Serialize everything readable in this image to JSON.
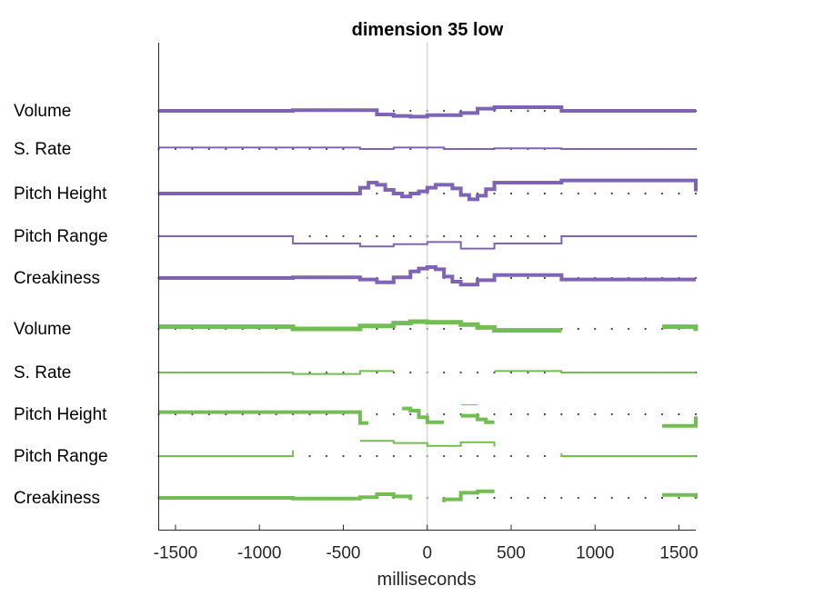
{
  "chart_data": {
    "type": "line",
    "title": "dimension 35 low",
    "xlabel": "milliseconds",
    "xlim": [
      -1600,
      1600
    ],
    "xticks": [
      -1500,
      -1000,
      -500,
      0,
      500,
      1000,
      1500
    ],
    "xtick_labels": [
      "-1500",
      "-1000",
      "-500",
      "0",
      "500",
      "1000",
      "1500"
    ],
    "zero_line": 0,
    "dot_spacing": 100,
    "colors": {
      "purple": "#8064b4",
      "green": "#74bc54",
      "axis": "#262626",
      "zero": "#c8c8c8",
      "dot": "#404040"
    },
    "row_labels": [
      "Volume",
      "S. Rate",
      "Pitch Height",
      "Pitch Range",
      "Creakiness",
      "Volume",
      "S. Rate",
      "Pitch Height",
      "Pitch Range",
      "Creakiness"
    ],
    "series": [
      {
        "name": "Volume",
        "group": "purple",
        "row": 0,
        "weight": 4,
        "segments": [
          [
            [
              -1600,
              0
            ],
            [
              -800,
              0
            ],
            [
              -800,
              0.1
            ],
            [
              -300,
              0.1
            ],
            [
              -300,
              -0.5
            ],
            [
              -200,
              -0.5
            ],
            [
              -200,
              -0.7
            ],
            [
              -100,
              -0.7
            ],
            [
              -100,
              -0.8
            ],
            [
              0,
              -0.8
            ],
            [
              0,
              -0.6
            ],
            [
              200,
              -0.6
            ],
            [
              200,
              -0.3
            ],
            [
              300,
              -0.3
            ],
            [
              300,
              0.3
            ],
            [
              400,
              0.3
            ],
            [
              400,
              0.5
            ],
            [
              800,
              0.5
            ],
            [
              800,
              0
            ],
            [
              1600,
              0
            ]
          ]
        ]
      },
      {
        "name": "S. Rate",
        "group": "purple",
        "row": 1,
        "weight": 2,
        "segments": [
          [
            [
              -1600,
              0.2
            ],
            [
              -800,
              0.2
            ],
            [
              -800,
              0.2
            ],
            [
              -400,
              0.2
            ],
            [
              -400,
              0
            ],
            [
              -200,
              0
            ],
            [
              -200,
              0.2
            ],
            [
              100,
              0.2
            ],
            [
              100,
              0
            ],
            [
              400,
              0
            ],
            [
              400,
              0.1
            ],
            [
              800,
              0.1
            ],
            [
              800,
              0
            ],
            [
              1600,
              0
            ]
          ]
        ]
      },
      {
        "name": "Pitch Height",
        "group": "purple",
        "row": 2,
        "weight": 4,
        "segments": [
          [
            [
              -1600,
              0
            ],
            [
              -400,
              0
            ],
            [
              -400,
              0.8
            ],
            [
              -350,
              0.8
            ],
            [
              -350,
              1.5
            ],
            [
              -300,
              1.5
            ],
            [
              -300,
              1.2
            ],
            [
              -250,
              1.2
            ],
            [
              -250,
              0.5
            ],
            [
              -200,
              0.5
            ],
            [
              -200,
              0
            ],
            [
              -150,
              0
            ],
            [
              -150,
              -0.4
            ],
            [
              -100,
              -0.4
            ],
            [
              -100,
              0
            ],
            [
              -50,
              0
            ],
            [
              -50,
              0.3
            ],
            [
              0,
              0.3
            ],
            [
              0,
              0.8
            ],
            [
              50,
              0.8
            ],
            [
              50,
              1.2
            ],
            [
              150,
              1.2
            ],
            [
              150,
              0.7
            ],
            [
              200,
              0.7
            ],
            [
              200,
              -0.2
            ],
            [
              250,
              -0.2
            ],
            [
              250,
              -0.8
            ],
            [
              300,
              -0.8
            ],
            [
              300,
              -0.3
            ],
            [
              350,
              -0.3
            ],
            [
              350,
              0.6
            ],
            [
              400,
              0.6
            ],
            [
              400,
              1.5
            ],
            [
              800,
              1.5
            ],
            [
              800,
              1.8
            ],
            [
              1600,
              1.8
            ],
            [
              1600,
              0.3
            ]
          ]
        ]
      },
      {
        "name": "Pitch Range",
        "group": "purple",
        "row": 3,
        "weight": 2,
        "segments": [
          [
            [
              -1600,
              0
            ],
            [
              -800,
              0
            ],
            [
              -800,
              -1
            ],
            [
              -400,
              -1
            ],
            [
              -400,
              -1.4
            ],
            [
              -200,
              -1.4
            ],
            [
              -200,
              -1.1
            ],
            [
              0,
              -1.1
            ],
            [
              0,
              -0.8
            ],
            [
              200,
              -0.8
            ],
            [
              200,
              -1.7
            ],
            [
              400,
              -1.7
            ],
            [
              400,
              -1.0
            ],
            [
              800,
              -1.0
            ],
            [
              800,
              0
            ],
            [
              1600,
              0
            ]
          ]
        ]
      },
      {
        "name": "Creakiness",
        "group": "purple",
        "row": 4,
        "weight": 4,
        "segments": [
          [
            [
              -1600,
              0
            ],
            [
              -800,
              0
            ],
            [
              -800,
              0.1
            ],
            [
              -400,
              0.1
            ],
            [
              -400,
              -0.2
            ],
            [
              -300,
              -0.2
            ],
            [
              -300,
              -0.6
            ],
            [
              -200,
              -0.6
            ],
            [
              -200,
              0.1
            ],
            [
              -100,
              0.1
            ],
            [
              -100,
              0.9
            ],
            [
              -50,
              0.9
            ],
            [
              -50,
              1.3
            ],
            [
              0,
              1.3
            ],
            [
              0,
              1.5
            ],
            [
              50,
              1.5
            ],
            [
              50,
              1.2
            ],
            [
              100,
              1.2
            ],
            [
              100,
              0.2
            ],
            [
              150,
              0.2
            ],
            [
              150,
              -0.5
            ],
            [
              200,
              -0.5
            ],
            [
              200,
              -0.9
            ],
            [
              300,
              -0.9
            ],
            [
              300,
              -0.3
            ],
            [
              400,
              -0.3
            ],
            [
              400,
              0.4
            ],
            [
              800,
              0.4
            ],
            [
              800,
              -0.2
            ],
            [
              1600,
              -0.2
            ]
          ]
        ]
      },
      {
        "name": "Volume",
        "group": "green",
        "row": 5,
        "weight": 5,
        "segments": [
          [
            [
              -1600,
              0.3
            ],
            [
              -800,
              0.3
            ],
            [
              -800,
              0
            ],
            [
              -400,
              0
            ],
            [
              -400,
              0.4
            ],
            [
              -200,
              0.4
            ],
            [
              -200,
              0.8
            ],
            [
              -100,
              0.8
            ],
            [
              -100,
              1.0
            ],
            [
              0,
              1.0
            ],
            [
              0,
              0.9
            ],
            [
              200,
              0.9
            ],
            [
              200,
              0.6
            ],
            [
              300,
              0.6
            ],
            [
              300,
              0.2
            ],
            [
              400,
              0.2
            ],
            [
              400,
              -0.2
            ],
            [
              800,
              -0.2
            ]
          ],
          [
            [
              1400,
              0.3
            ],
            [
              1600,
              0.3
            ],
            [
              1600,
              -0.3
            ]
          ]
        ]
      },
      {
        "name": "S. Rate",
        "group": "green",
        "row": 6,
        "weight": 2,
        "segments": [
          [
            [
              -1600,
              0
            ],
            [
              -800,
              0
            ],
            [
              -800,
              -0.2
            ],
            [
              -400,
              -0.2
            ],
            [
              -400,
              0.2
            ],
            [
              -200,
              0.2
            ]
          ],
          [
            [
              400,
              0.2
            ],
            [
              800,
              0.2
            ],
            [
              800,
              0
            ],
            [
              1600,
              0
            ]
          ]
        ]
      },
      {
        "name": "Pitch Height",
        "group": "green",
        "row": 7,
        "weight": 4,
        "segments": [
          [
            [
              -1600,
              0.3
            ],
            [
              -400,
              0.3
            ],
            [
              -400,
              -1.2
            ],
            [
              -350,
              -1.2
            ]
          ],
          [
            [
              -150,
              0.8
            ],
            [
              -100,
              0.8
            ],
            [
              -100,
              0.5
            ],
            [
              -50,
              0.5
            ],
            [
              -50,
              -0.4
            ],
            [
              0,
              -0.4
            ],
            [
              0,
              -1.1
            ],
            [
              100,
              -1.1
            ]
          ],
          [
            [
              200,
              -0.2
            ],
            [
              300,
              -0.2
            ],
            [
              300,
              -0.7
            ],
            [
              350,
              -0.7
            ],
            [
              350,
              -1.1
            ],
            [
              400,
              -1.1
            ]
          ],
          [
            [
              1400,
              -1.6
            ],
            [
              1600,
              -1.6
            ],
            [
              1600,
              -0.3
            ]
          ]
        ]
      },
      {
        "name": "Pitch Height faint",
        "group": "green",
        "row": 7,
        "weight": 1,
        "segments": [
          [
            [
              200,
              1.3
            ],
            [
              300,
              1.3
            ]
          ]
        ]
      },
      {
        "name": "Pitch Range",
        "group": "green",
        "row": 8,
        "weight": 2,
        "segments": [
          [
            [
              -1600,
              0
            ],
            [
              -800,
              0
            ],
            [
              -800,
              0.8
            ]
          ],
          [
            [
              -400,
              2.1
            ],
            [
              -200,
              2.1
            ],
            [
              -200,
              1.8
            ],
            [
              0,
              1.8
            ],
            [
              0,
              1.4
            ],
            [
              200,
              1.4
            ],
            [
              200,
              1.9
            ],
            [
              400,
              1.9
            ],
            [
              400,
              1.3
            ]
          ],
          [
            [
              800,
              0.4
            ],
            [
              800,
              0
            ],
            [
              1600,
              0
            ]
          ]
        ]
      },
      {
        "name": "Creakiness",
        "group": "green",
        "row": 9,
        "weight": 4,
        "segments": [
          [
            [
              -1600,
              0
            ],
            [
              -800,
              0
            ],
            [
              -800,
              -0.1
            ],
            [
              -400,
              -0.1
            ],
            [
              -400,
              0.1
            ],
            [
              -300,
              0.1
            ],
            [
              -300,
              0.5
            ],
            [
              -200,
              0.5
            ],
            [
              -200,
              0.2
            ],
            [
              -100,
              0.2
            ],
            [
              -100,
              -0.3
            ]
          ],
          [
            [
              100,
              -0.6
            ],
            [
              100,
              -0.6
            ],
            [
              100,
              -0.2
            ],
            [
              200,
              -0.2
            ],
            [
              200,
              0.7
            ],
            [
              300,
              0.7
            ],
            [
              300,
              0.9
            ],
            [
              400,
              0.9
            ]
          ],
          [
            [
              1400,
              0.4
            ],
            [
              1600,
              0.4
            ],
            [
              1600,
              0
            ]
          ]
        ]
      }
    ]
  }
}
